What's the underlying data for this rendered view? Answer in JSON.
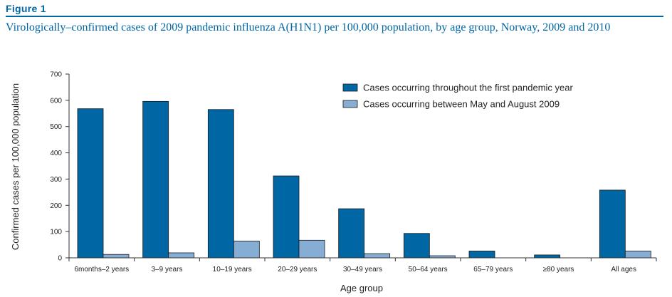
{
  "figure": {
    "label": "Figure 1",
    "title": "Virologically–confirmed cases of 2009 pandemic influenza A(H1N1) per 100,000 population, by age group, Norway, 2009 and 2010"
  },
  "chart_data": {
    "type": "bar",
    "categories": [
      "6months–2 years",
      "3–9 years",
      "10–19 years",
      "20–29 years",
      "30–49 years",
      "50–64 years",
      "65–79 years",
      "≥80 years",
      "All ages"
    ],
    "series": [
      {
        "name": "Cases occurring throughout the first pandemic year",
        "color": "#0066a4",
        "values": [
          568,
          596,
          565,
          312,
          187,
          93,
          26,
          11,
          258
        ]
      },
      {
        "name": "Cases occurring between May and August 2009",
        "color": "#86aed4",
        "values": [
          13,
          19,
          64,
          67,
          16,
          8,
          0,
          0,
          26
        ]
      }
    ],
    "title": "Virologically–confirmed cases of 2009 pandemic influenza A(H1N1) per 100,000 population, by age group, Norway, 2009 and 2010",
    "xlabel": "Age group",
    "ylabel": "Confirmed cases per 100,000 population",
    "ylim": [
      0,
      700
    ],
    "yticks": [
      0,
      100,
      200,
      300,
      400,
      500,
      600,
      700
    ],
    "grid": false,
    "legend": "top-right"
  }
}
